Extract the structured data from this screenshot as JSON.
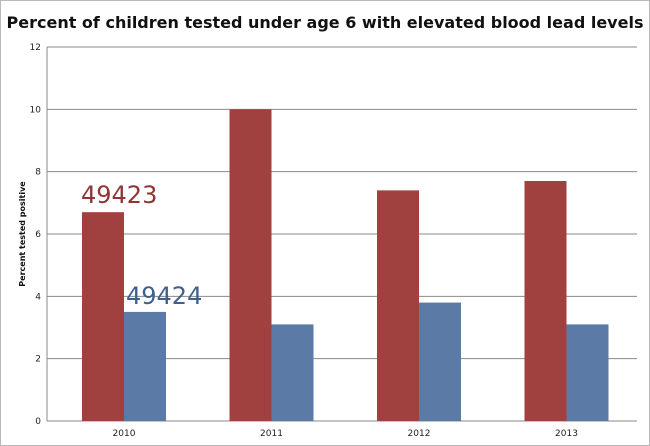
{
  "chart_data": {
    "type": "bar",
    "title": "Percent of children tested under age 6 with elevated blood lead levels",
    "xlabel": "",
    "ylabel": "Percent tested positive",
    "ylim": [
      0,
      12
    ],
    "yticks": [
      0,
      2,
      4,
      6,
      8,
      10,
      12
    ],
    "grid": true,
    "legend": "none",
    "categories": [
      "2010",
      "2011",
      "2012",
      "2013"
    ],
    "series": [
      {
        "name": "49423",
        "color": "#a0403f",
        "values": [
          6.7,
          10.0,
          7.4,
          7.7
        ]
      },
      {
        "name": "49424",
        "color": "#5b7ba6",
        "values": [
          3.5,
          3.1,
          3.8,
          3.1
        ]
      }
    ],
    "annotations": [
      {
        "text": "49423",
        "color": "#8f3535"
      },
      {
        "text": "49424",
        "color": "#3f5f8c"
      }
    ]
  }
}
